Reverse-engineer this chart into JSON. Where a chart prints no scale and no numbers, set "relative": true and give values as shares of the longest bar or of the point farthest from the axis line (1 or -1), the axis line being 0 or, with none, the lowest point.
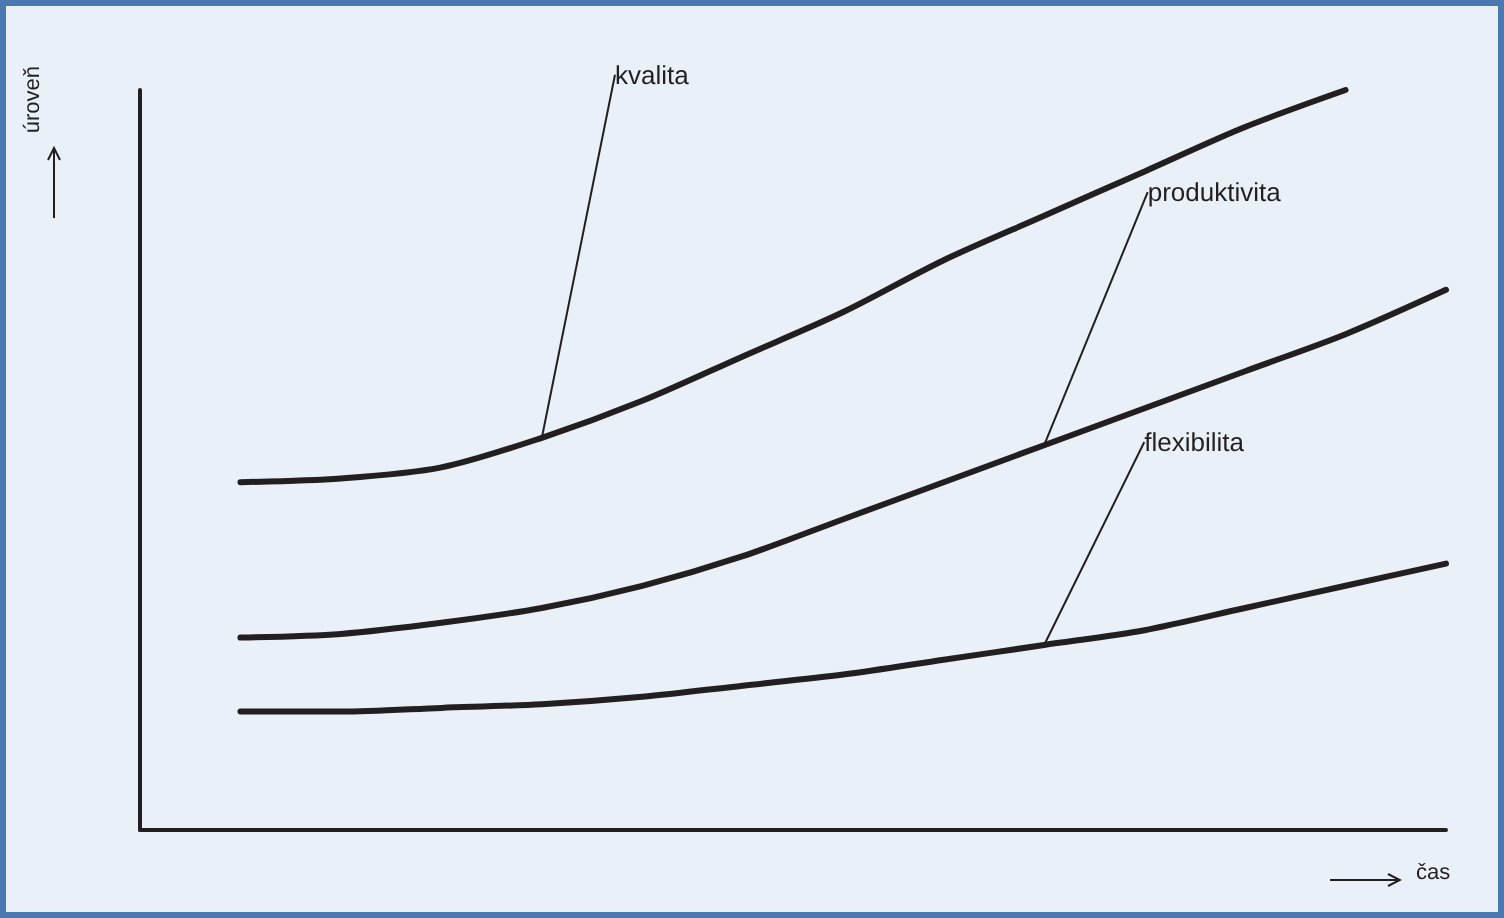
{
  "chart_data": {
    "type": "line",
    "relative": true,
    "xlabel": "čas",
    "ylabel": "úroveň",
    "categories": [
      null,
      null,
      null,
      null,
      null,
      null,
      null,
      null,
      null,
      null,
      null,
      null,
      null,
      null
    ],
    "series": [
      {
        "name": "kvalita",
        "color": "#231f20",
        "values": [
          null,
          0.47,
          0.475,
          0.49,
          0.53,
          0.58,
          0.64,
          0.7,
          0.77,
          0.83,
          0.89,
          0.95,
          1.0,
          null
        ]
      },
      {
        "name": "produktivita",
        "color": "#231f20",
        "values": [
          null,
          0.26,
          0.265,
          0.28,
          0.3,
          0.33,
          0.37,
          0.42,
          0.47,
          0.52,
          0.57,
          0.62,
          0.67,
          0.73
        ]
      },
      {
        "name": "flexibilita",
        "color": "#231f20",
        "values": [
          null,
          0.16,
          0.16,
          0.165,
          0.17,
          0.18,
          0.195,
          0.21,
          0.23,
          0.25,
          0.27,
          0.3,
          0.33,
          0.36
        ]
      }
    ],
    "grid": false,
    "legend": false,
    "marker": "none",
    "line_style": "solid"
  }
}
